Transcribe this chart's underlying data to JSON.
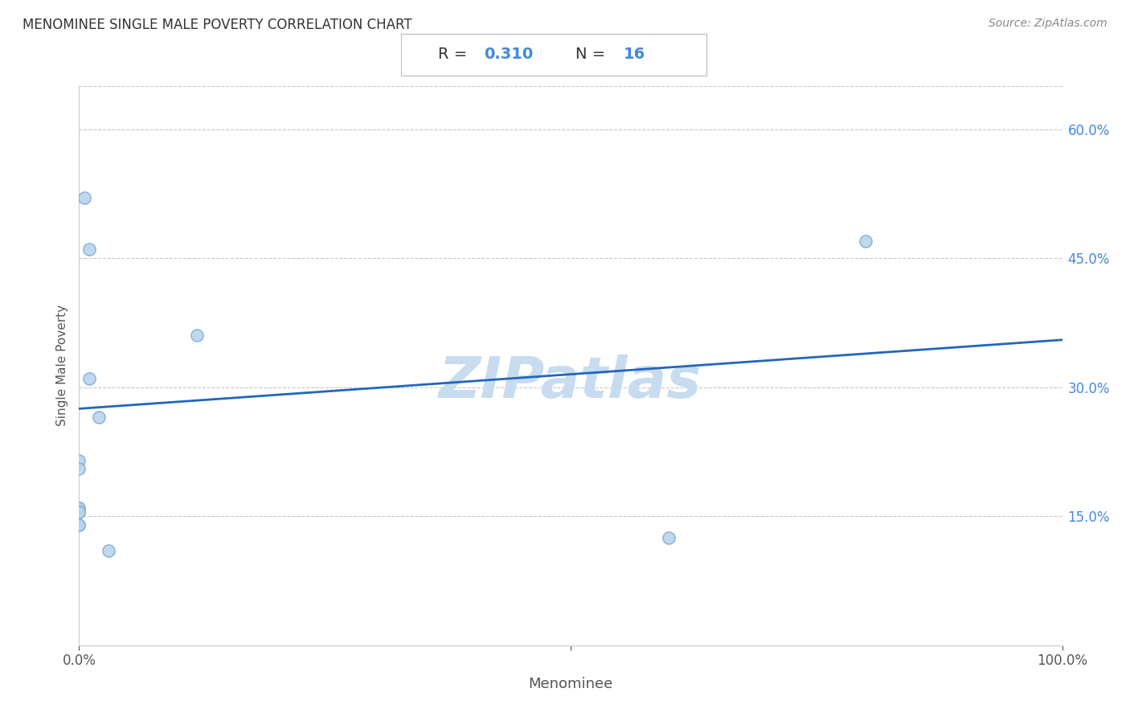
{
  "title": "MENOMINEE SINGLE MALE POVERTY CORRELATION CHART",
  "source": "Source: ZipAtlas.com",
  "xlabel": "Menominee",
  "ylabel": "Single Male Poverty",
  "R": "0.310",
  "N": "16",
  "scatter_x": [
    0.005,
    0.01,
    0.01,
    0.02,
    0.0,
    0.0,
    0.0,
    0.0,
    0.0,
    0.0,
    0.0,
    0.0,
    0.03,
    0.6,
    0.8,
    0.12
  ],
  "scatter_y": [
    0.52,
    0.46,
    0.31,
    0.265,
    0.215,
    0.205,
    0.16,
    0.16,
    0.155,
    0.155,
    0.14,
    0.14,
    0.11,
    0.125,
    0.47,
    0.36
  ],
  "xlim": [
    0,
    1.0
  ],
  "ylim": [
    0.0,
    0.65
  ],
  "xtick_positions": [
    0.0,
    0.5,
    1.0
  ],
  "xticklabels": [
    "0.0%",
    "",
    "100.0%"
  ],
  "yticks_right": [
    0.15,
    0.3,
    0.45,
    0.6
  ],
  "yticklabels_right": [
    "15.0%",
    "30.0%",
    "45.0%",
    "60.0%"
  ],
  "grid_color": "#c8c8c8",
  "scatter_color": "#b8d4ed",
  "scatter_edge_color": "#7aaad4",
  "scatter_size": 120,
  "line_color": "#2266bb",
  "title_color": "#333333",
  "source_color": "#888888",
  "annotation_R_label_color": "#333333",
  "annotation_R_value_color": "#4488dd",
  "annotation_N_label_color": "#333333",
  "annotation_N_value_color": "#4488dd",
  "watermark_color": "#c8dcf0",
  "background_color": "#ffffff",
  "trend_x0": 0.0,
  "trend_x1": 1.0,
  "trend_y0": 0.275,
  "trend_y1": 0.355
}
